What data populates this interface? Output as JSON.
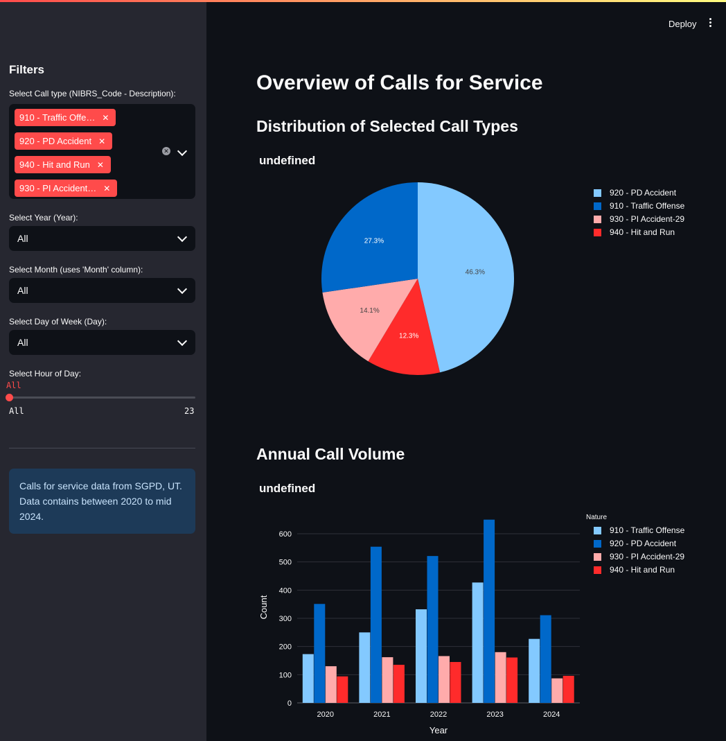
{
  "header": {
    "deploy_label": "Deploy",
    "menu_icon": "kebab-icon"
  },
  "sidebar": {
    "title": "Filters",
    "call_type": {
      "label": "Select Call type (NIBRS_Code - Description):",
      "tags": [
        "910 - Traffic Offe…",
        "920 - PD Accident",
        "940 - Hit and Run",
        "930 - PI Accident…"
      ],
      "remove_glyph": "✕",
      "clear_glyph": "✕"
    },
    "year": {
      "label": "Select Year (Year):",
      "value": "All"
    },
    "month": {
      "label": "Select Month (uses 'Month' column):",
      "value": "All"
    },
    "day": {
      "label": "Select Day of Week (Day):",
      "value": "All"
    },
    "hour": {
      "label": "Select Hour of Day:",
      "value": "All",
      "min_label": "All",
      "max_label": "23"
    },
    "info": "Calls for service data from SGPD, UT. Data contains between 2020 to mid 2024."
  },
  "main": {
    "title": "Overview of Calls for Service",
    "pie_section": "Distribution of Selected Call Types",
    "bar_section": "Annual Call Volume"
  },
  "colors": {
    "c910": "#83c9ff",
    "c920": "#0068c9",
    "c930": "#ffabab",
    "c940": "#ff2b2b"
  },
  "chart_data": [
    {
      "type": "pie",
      "title": "undefined",
      "slices": [
        {
          "label": "920 - PD Accident",
          "value": 46.3,
          "text": "46.3%",
          "color": "#83c9ff"
        },
        {
          "label": "940 - Hit and Run",
          "value": 12.3,
          "text": "12.3%",
          "color": "#ff2b2b"
        },
        {
          "label": "930 - PI Accident-29",
          "value": 14.1,
          "text": "14.1%",
          "color": "#ffabab"
        },
        {
          "label": "910 - Traffic Offense",
          "value": 27.3,
          "text": "27.3%",
          "color": "#0068c9"
        }
      ],
      "legend": [
        "920 - PD Accident",
        "910 - Traffic Offense",
        "930 - PI Accident-29",
        "940 - Hit and Run"
      ],
      "legend_colors": [
        "#83c9ff",
        "#0068c9",
        "#ffabab",
        "#ff2b2b"
      ],
      "legend_position": "right"
    },
    {
      "type": "bar",
      "title": "undefined",
      "categories": [
        "2020",
        "2021",
        "2022",
        "2023",
        "2024"
      ],
      "series": [
        {
          "name": "910 - Traffic Offense",
          "color": "#83c9ff",
          "values": [
            173,
            250,
            332,
            427,
            227
          ]
        },
        {
          "name": "920 - PD Accident",
          "color": "#0068c9",
          "values": [
            351,
            554,
            521,
            650,
            311
          ]
        },
        {
          "name": "930 - PI Accident-29",
          "color": "#ffabab",
          "values": [
            130,
            162,
            166,
            180,
            87
          ]
        },
        {
          "name": "940 - Hit and Run",
          "color": "#ff2b2b",
          "values": [
            94,
            135,
            145,
            161,
            96
          ]
        }
      ],
      "xlabel": "Year",
      "ylabel": "Count",
      "yticks": [
        "0",
        "100",
        "200",
        "300",
        "400",
        "500",
        "600"
      ],
      "ylim": [
        0,
        660
      ],
      "legend_title": "Nature",
      "legend_position": "right"
    }
  ]
}
